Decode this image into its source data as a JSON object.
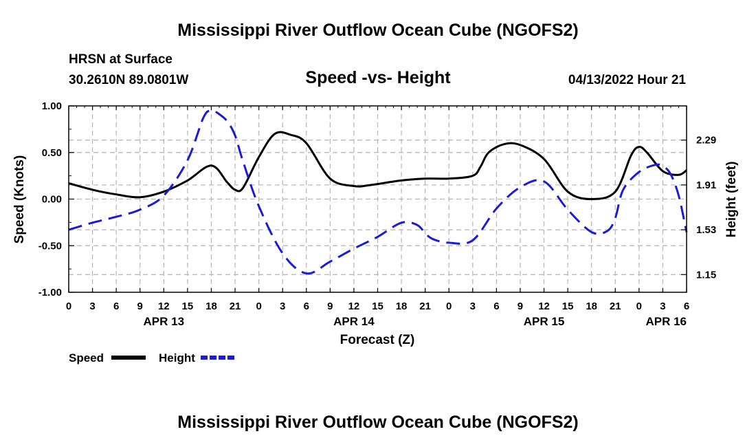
{
  "page": {
    "title_top": "Mississippi River Outflow Ocean Cube (NGOFS2)",
    "title_bottom": "Mississippi River Outflow Ocean Cube (NGOFS2)",
    "station_line": "HRSN at Surface",
    "coords_line": "30.2610N  89.0801W",
    "datetime_line": "04/13/2022 Hour 21"
  },
  "colors": {
    "speed": "#000000",
    "height": "#1a1adb",
    "grid": "#b4b4b4"
  },
  "chart_data": {
    "type": "line",
    "title": "Speed -vs- Height",
    "xlabel": "Forecast (Z)",
    "ylabel_left": "Speed (Knots)",
    "ylabel_right": "Height (feet)",
    "x_range_hours": [
      0,
      78
    ],
    "x_tick_every_hours": 3,
    "x_tick_labels": [
      "0",
      "3",
      "6",
      "9",
      "12",
      "15",
      "18",
      "21",
      "0",
      "3",
      "6",
      "9",
      "12",
      "15",
      "18",
      "21",
      "0",
      "3",
      "6",
      "9",
      "12",
      "15",
      "18",
      "21",
      "0",
      "3",
      "6"
    ],
    "date_labels": [
      {
        "label": "APR 13",
        "hour": 12
      },
      {
        "label": "APR 14",
        "hour": 36
      },
      {
        "label": "APR 15",
        "hour": 60
      },
      {
        "label": "APR 16",
        "hour": 78
      }
    ],
    "ylim_left": [
      -1.0,
      1.0
    ],
    "yticks_left": [
      "1.00",
      "0.50",
      "0.00",
      "-0.50",
      "-1.00"
    ],
    "yticks_left_values": [
      1.0,
      0.5,
      0.0,
      -0.5,
      -1.0
    ],
    "ylim_right": [
      1.0,
      2.58
    ],
    "yticks_right": [
      "2.29",
      "1.91",
      "1.53",
      "1.15"
    ],
    "yticks_right_values": [
      2.29,
      1.91,
      1.53,
      1.15
    ],
    "grid": true,
    "series": [
      {
        "name": "Speed",
        "axis": "left",
        "style": "solid",
        "x": [
          0,
          3,
          6,
          9,
          12,
          15,
          18,
          20,
          21,
          22,
          24,
          26,
          28,
          30,
          33,
          36,
          38,
          42,
          45,
          48,
          51,
          52,
          53,
          55,
          57,
          60,
          63,
          66,
          69,
          71,
          72,
          73,
          75,
          77,
          78
        ],
        "y": [
          0.17,
          0.1,
          0.05,
          0.02,
          0.08,
          0.2,
          0.36,
          0.18,
          0.1,
          0.12,
          0.45,
          0.7,
          0.69,
          0.6,
          0.22,
          0.14,
          0.15,
          0.2,
          0.22,
          0.22,
          0.25,
          0.35,
          0.5,
          0.59,
          0.58,
          0.43,
          0.08,
          0.0,
          0.08,
          0.47,
          0.56,
          0.5,
          0.3,
          0.26,
          0.31
        ]
      },
      {
        "name": "Height",
        "axis": "right",
        "style": "dashed",
        "x": [
          0,
          3,
          6,
          9,
          12,
          15,
          17,
          18,
          19,
          20,
          21,
          22,
          24,
          27,
          30,
          33,
          36,
          39,
          42,
          44,
          45,
          46,
          48,
          51,
          54,
          57,
          60,
          63,
          66,
          68,
          69,
          70,
          72,
          74,
          75,
          76,
          77,
          78
        ],
        "y": [
          1.53,
          1.59,
          1.64,
          1.7,
          1.82,
          2.12,
          2.48,
          2.54,
          2.51,
          2.45,
          2.33,
          2.11,
          1.73,
          1.33,
          1.16,
          1.26,
          1.37,
          1.47,
          1.59,
          1.57,
          1.5,
          1.45,
          1.42,
          1.44,
          1.71,
          1.89,
          1.94,
          1.7,
          1.51,
          1.52,
          1.63,
          1.87,
          2.02,
          2.08,
          2.07,
          2.0,
          1.82,
          1.51
        ]
      }
    ],
    "legend": [
      {
        "label": "Speed",
        "style": "solid"
      },
      {
        "label": "Height",
        "style": "dashed"
      }
    ]
  }
}
